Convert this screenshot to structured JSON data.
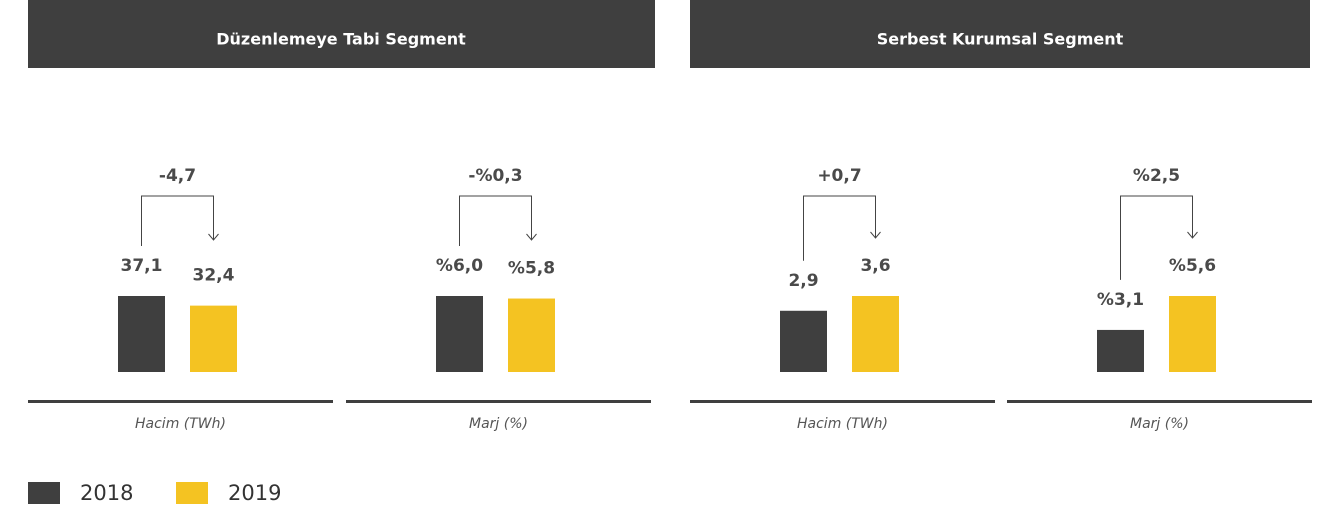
{
  "panels": [
    {
      "title": "Düzenlemeye Tabi Segment"
    },
    {
      "title": "Serbest Kurumsal Segment"
    }
  ],
  "legend": [
    {
      "name": "2018",
      "color": "#3f3f3f"
    },
    {
      "name": "2019",
      "color": "#f4c322"
    }
  ],
  "chart_data": [
    {
      "type": "bar",
      "x_label": "Hacim (TWh)",
      "values": [
        37.1,
        32.4
      ],
      "value_labels": [
        "37,1",
        "32,4"
      ],
      "annotation": "-4,7"
    },
    {
      "type": "bar",
      "x_label": "Marj (%)",
      "values": [
        6.0,
        5.8
      ],
      "value_labels": [
        "%6,0",
        "%5,8"
      ],
      "annotation": "-%0,3"
    },
    {
      "type": "bar",
      "x_label": "Hacim (TWh)",
      "values": [
        2.9,
        3.6
      ],
      "value_labels": [
        "2,9",
        "3,6"
      ],
      "annotation": "+0,7"
    },
    {
      "type": "bar",
      "x_label": "Marj (%)",
      "values": [
        3.1,
        5.6
      ],
      "value_labels": [
        "%3,1",
        "%5,6"
      ],
      "annotation": "%2,5"
    }
  ]
}
